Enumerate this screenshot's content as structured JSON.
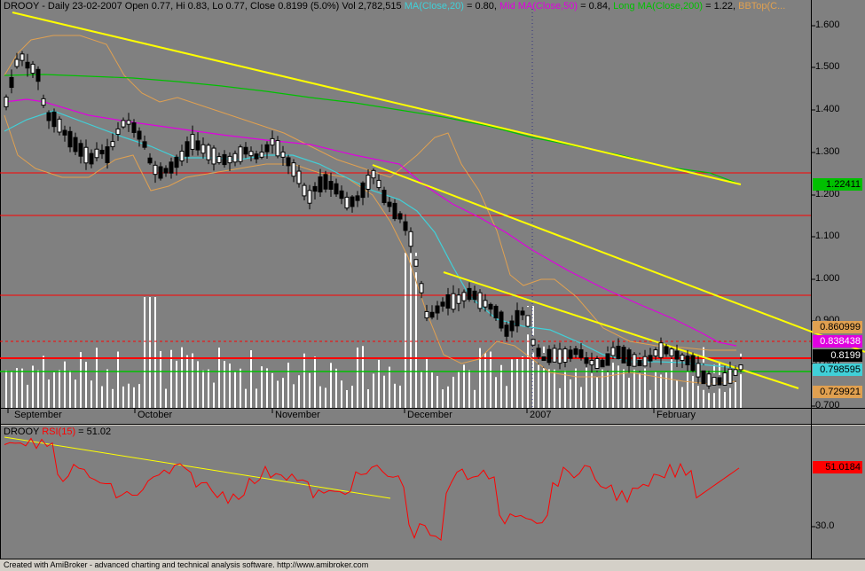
{
  "header": {
    "symbol": "DROOY",
    "info": " - Daily 23-02-2007 Open 0.77, Hi 0.83, Lo 0.77, Close 0.8199 (5.0%) Vol 2,782,515",
    "ma20_label": "MA(Close,20)",
    "ma20_value": " = 0.80,",
    "ma50_label": "Mid MA(Close,50)",
    "ma50_value": " = 0.84,",
    "ma200_label": "Long MA(Close,200)",
    "ma200_value": " = 1.22,",
    "trailing_label": "BBTop(C..."
  },
  "rsi_header": {
    "symbol": "DROOY",
    "label": "RSI(15)",
    "value": " = 51.02"
  },
  "price_axis": [
    "1.600",
    "1.500",
    "1.400",
    "1.300",
    "1.200",
    "1.100",
    "1.000",
    "0.900",
    "0.800",
    "0.700"
  ],
  "rsi_axis": [
    "30.0"
  ],
  "date_axis": [
    "September",
    "October",
    "November",
    "December",
    "2007",
    "February"
  ],
  "price_tags": {
    "bb_top": "0.860999",
    "ma50": "0.838438",
    "close": "0.8199",
    "ma20": "0.798595",
    "bb_bottom": "0.729921",
    "ma200": "1.22411",
    "rsi": "51.0184"
  },
  "colors": {
    "background": "#808080",
    "ma20": "#40d0d8",
    "ma50": "#e000e0",
    "ma200": "#00c000",
    "bollinger": "#e0a050",
    "trendline": "#ffff00",
    "support": "#ff0000",
    "rsi_line": "#ff0000"
  },
  "footer": "Created with AmiBroker - advanced charting and technical analysis software. http://www.amibroker.com"
}
